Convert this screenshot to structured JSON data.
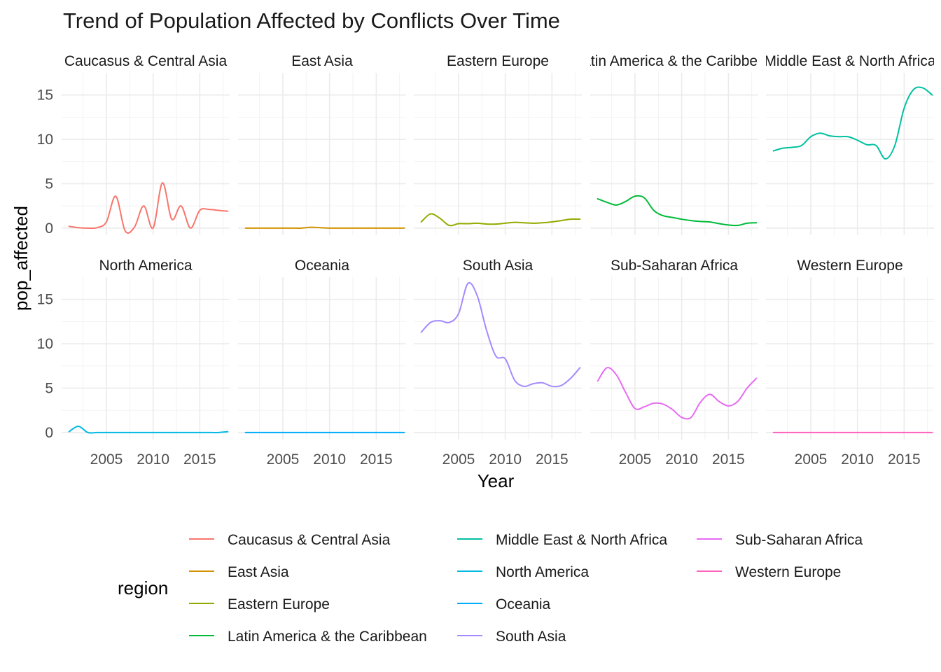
{
  "chart_data": {
    "type": "line",
    "title": "Trend of Population Affected by Conflicts Over Time",
    "xlabel": "Year",
    "ylabel": "pop_affected",
    "xlim": [
      2000.2,
      2018.2
    ],
    "ylim": [
      -0.8,
      17.5
    ],
    "xticks": [
      2005,
      2010,
      2015
    ],
    "yticks": [
      0,
      5,
      10,
      15
    ],
    "grid": true,
    "facet_layout": {
      "rows": 2,
      "cols": 5
    },
    "legend": {
      "title": "region",
      "position": "bottom"
    },
    "x": [
      2001,
      2002,
      2003,
      2004,
      2005,
      2006,
      2007,
      2008,
      2009,
      2010,
      2011,
      2012,
      2013,
      2014,
      2015,
      2016,
      2017,
      2018
    ],
    "series": [
      {
        "name": "Caucasus & Central Asia",
        "color": "#F8766D",
        "values": [
          0.2,
          0.05,
          0.0,
          0.05,
          0.7,
          3.6,
          -0.3,
          0.1,
          2.5,
          0.0,
          5.1,
          1.0,
          2.5,
          0.0,
          2.0,
          2.1,
          2.0,
          1.9
        ]
      },
      {
        "name": "East Asia",
        "color": "#D39200",
        "values": [
          0,
          0,
          0,
          0,
          0,
          0,
          0,
          0.1,
          0.05,
          0,
          0,
          0,
          0,
          0,
          0,
          0,
          0,
          0
        ]
      },
      {
        "name": "Eastern Europe",
        "color": "#93AA00",
        "values": [
          0.7,
          1.6,
          1.1,
          0.3,
          0.5,
          0.5,
          0.55,
          0.45,
          0.45,
          0.55,
          0.65,
          0.6,
          0.55,
          0.6,
          0.7,
          0.85,
          1.0,
          1.0
        ]
      },
      {
        "name": "Latin America & the Caribbean",
        "color": "#00BA38",
        "values": [
          3.3,
          2.9,
          2.6,
          3.0,
          3.6,
          3.4,
          2.0,
          1.4,
          1.2,
          1.0,
          0.85,
          0.75,
          0.7,
          0.5,
          0.35,
          0.3,
          0.55,
          0.6
        ]
      },
      {
        "name": "Middle East & North Africa",
        "color": "#00C19F",
        "values": [
          8.7,
          9.0,
          9.1,
          9.3,
          10.3,
          10.7,
          10.4,
          10.3,
          10.3,
          9.9,
          9.4,
          9.3,
          7.8,
          9.3,
          13.5,
          15.6,
          15.8,
          15.0
        ]
      },
      {
        "name": "North America",
        "color": "#00B9E3",
        "values": [
          0.1,
          0.7,
          0.0,
          0.0,
          0,
          0,
          0,
          0,
          0,
          0,
          0,
          0,
          0,
          0,
          0,
          0,
          0,
          0.1
        ]
      },
      {
        "name": "Oceania",
        "color": "#00ADFA",
        "values": [
          0,
          0,
          0,
          0,
          0,
          0,
          0,
          0,
          0,
          0,
          0,
          0,
          0,
          0,
          0,
          0,
          0,
          0
        ]
      },
      {
        "name": "South Asia",
        "color": "#A58AFF",
        "values": [
          11.3,
          12.4,
          12.6,
          12.4,
          13.4,
          16.8,
          15.4,
          11.5,
          8.6,
          8.3,
          5.9,
          5.2,
          5.5,
          5.6,
          5.2,
          5.3,
          6.1,
          7.3
        ]
      },
      {
        "name": "Sub-Saharan Africa",
        "color": "#E76BF3",
        "values": [
          5.8,
          7.3,
          6.5,
          4.5,
          2.7,
          2.9,
          3.3,
          3.2,
          2.6,
          1.7,
          1.7,
          3.4,
          4.3,
          3.5,
          3.0,
          3.5,
          5.0,
          6.1
        ]
      },
      {
        "name": "Western Europe",
        "color": "#FF62BC",
        "values": [
          0,
          0,
          0,
          0,
          0,
          0,
          0,
          0,
          0,
          0,
          0,
          0,
          0,
          0,
          0,
          0,
          0,
          0
        ]
      }
    ]
  },
  "strip_labels": [
    "Caucasus & Central Asia",
    "East Asia",
    "Eastern Europe",
    "Latin America & the Caribbean",
    "Middle East & North Africa",
    "North America",
    "Oceania",
    "South Asia",
    "Sub-Saharan Africa",
    "Western Europe"
  ]
}
